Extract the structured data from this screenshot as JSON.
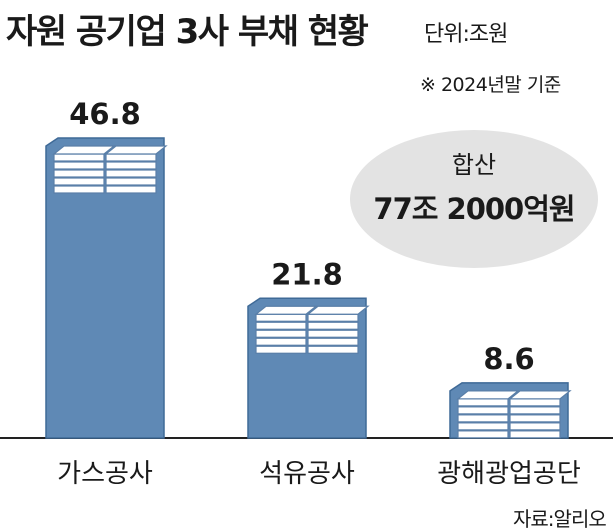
{
  "title": "자원 공기업 3사 부채 현황",
  "unit": "단위:조원",
  "note": "※ 2024년말 기준",
  "source": "자료:알리오",
  "total": {
    "label": "합산",
    "value": "77조 2000억원"
  },
  "colors": {
    "bar": "#5f89b5",
    "bar_edge": "#3f6a97",
    "money": "#ffffff",
    "money_line": "#5a7fa8",
    "ellipse": "#e3e3e3"
  },
  "icon": "stacked-money-icon",
  "chart_data": {
    "type": "bar",
    "title": "자원 공기업 3사 부채 현황",
    "unit": "조원",
    "categories": [
      "가스공사",
      "석유공사",
      "광해광업공단"
    ],
    "values": [
      46.8,
      21.8,
      8.6
    ],
    "value_labels": [
      "46.8",
      "21.8",
      "8.6"
    ]
  }
}
